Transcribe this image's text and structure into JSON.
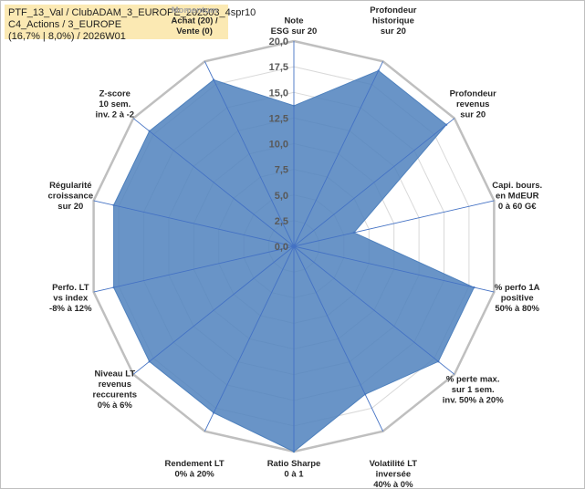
{
  "header": {
    "line1": "PTF_13_Val / ClubADAM_3_EUROPE_202503_4spr10",
    "line2": "C4_Actions / 3_EUROPE",
    "line3": "(16,7% | 8,0%) / 2026W01"
  },
  "chart_data": {
    "type": "radar",
    "title": "",
    "rlim": [
      0,
      20
    ],
    "tick_values": [
      0,
      2.5,
      5,
      7.5,
      10,
      12.5,
      15,
      17.5,
      20
    ],
    "tick_labels": [
      "0,0",
      "2,5",
      "5,0",
      "7,5",
      "10,0",
      "12,5",
      "15,0",
      "17,5",
      "20,0"
    ],
    "grid": true,
    "colors": {
      "fill": "#4f81bd",
      "grid": "#d9d9d9",
      "outer_ring": "#bfbfbf",
      "spoke": "#4472c4",
      "label": "#262626",
      "label_muted": "#a6a6a6"
    },
    "categories": [
      {
        "lines": [
          "Note",
          "ESG sur 20"
        ],
        "muted": false
      },
      {
        "lines": [
          "Profondeur",
          "historique",
          "sur 20"
        ],
        "muted": false
      },
      {
        "lines": [
          "Profondeur",
          "revenus",
          "sur 20"
        ],
        "muted": false
      },
      {
        "lines": [
          "Capi. bours.",
          "en MdEUR",
          "0 à 60 G€"
        ],
        "muted": false
      },
      {
        "lines": [
          "% perfo 1A",
          "positive",
          "50% à 80%"
        ],
        "muted": false
      },
      {
        "lines": [
          "% perte max.",
          "sur 1 sem.",
          "inv. 50% à 20%"
        ],
        "muted": false
      },
      {
        "lines": [
          "Volatilité LT",
          "inversée",
          "40% à 0%"
        ],
        "muted": false
      },
      {
        "lines": [
          "Ratio Sharpe",
          "0 à 1"
        ],
        "muted": false
      },
      {
        "lines": [
          "Rendement LT",
          "0% à 20%"
        ],
        "muted": false
      },
      {
        "lines": [
          "Niveau LT",
          "revenus",
          "reccurents",
          "0% à 6%"
        ],
        "muted": false
      },
      {
        "lines": [
          "Perfo. LT",
          "vs index",
          "-8% à 12%"
        ],
        "muted": false
      },
      {
        "lines": [
          "Régularité",
          "croissance",
          "sur 20"
        ],
        "muted": false
      },
      {
        "lines": [
          "Z-score",
          "10 sem.",
          "inv. 2 à -2"
        ],
        "muted": false
      },
      {
        "lines": [
          "Momentum",
          "Achat (20) /",
          "Vente (0)"
        ],
        "muted_first_line": true
      }
    ],
    "series": [
      {
        "values": [
          13.7,
          19.0,
          19.0,
          6.0,
          18.0,
          18.0,
          16.0,
          20.0,
          18.0,
          18.0,
          18.0,
          18.0,
          18.0,
          18.0
        ]
      }
    ]
  }
}
